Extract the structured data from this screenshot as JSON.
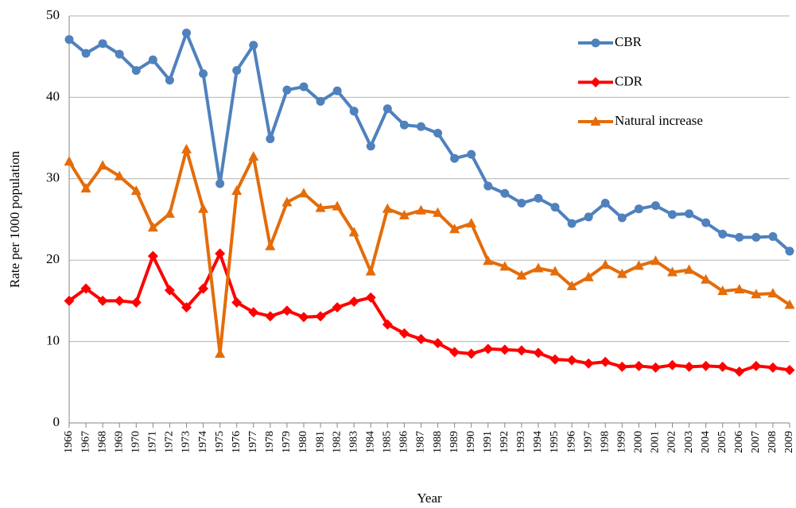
{
  "chart_data": {
    "type": "line",
    "x_label": "Year",
    "y_label": "Rate per 1000 population",
    "categories": [
      "1966",
      "1967",
      "1968",
      "1969",
      "1970",
      "1971",
      "1972",
      "1973",
      "1974",
      "1975",
      "1976",
      "1977",
      "1978",
      "1979",
      "1980",
      "1981",
      "1982",
      "1983",
      "1984",
      "1985",
      "1986",
      "1987",
      "1988",
      "1989",
      "1990",
      "1991",
      "1992",
      "1993",
      "1994",
      "1995",
      "1996",
      "1997",
      "1998",
      "1999",
      "2000",
      "2001",
      "2002",
      "2003",
      "2004",
      "2005",
      "2006",
      "2007",
      "2008",
      "2009"
    ],
    "series": [
      {
        "name": "CBR",
        "color": "#4f81bd",
        "marker": "circle",
        "values": [
          47.1,
          45.4,
          46.6,
          45.3,
          43.3,
          44.6,
          42.1,
          47.9,
          42.9,
          29.4,
          43.3,
          46.4,
          34.9,
          40.9,
          41.3,
          39.5,
          40.8,
          38.3,
          34.0,
          38.6,
          36.6,
          36.4,
          35.6,
          32.5,
          33.0,
          29.1,
          28.2,
          27.0,
          27.6,
          26.5,
          24.5,
          25.3,
          27.0,
          25.2,
          26.3,
          26.7,
          25.6,
          25.7,
          24.6,
          23.2,
          22.8,
          22.8,
          22.9,
          21.1
        ]
      },
      {
        "name": "CDR",
        "color": "#ff0000",
        "marker": "diamond",
        "values": [
          15.0,
          16.5,
          15.0,
          15.0,
          14.8,
          20.5,
          16.3,
          14.2,
          16.5,
          20.8,
          14.8,
          13.6,
          13.1,
          13.8,
          13.0,
          13.1,
          14.2,
          14.9,
          15.4,
          12.1,
          11.0,
          10.3,
          9.8,
          8.7,
          8.5,
          9.1,
          9.0,
          8.9,
          8.6,
          7.8,
          7.7,
          7.3,
          7.5,
          6.9,
          7.0,
          6.8,
          7.1,
          6.9,
          7.0,
          6.9,
          6.3,
          7.0,
          6.8,
          6.5
        ]
      },
      {
        "name": "Natural increase",
        "color": "#e46c0a",
        "marker": "triangle",
        "values": [
          32.1,
          28.8,
          31.6,
          30.3,
          28.5,
          24.0,
          25.7,
          33.6,
          26.3,
          8.5,
          28.5,
          32.7,
          21.7,
          27.1,
          28.2,
          26.4,
          26.6,
          23.4,
          18.6,
          26.3,
          25.5,
          26.1,
          25.8,
          23.8,
          24.5,
          19.9,
          19.2,
          18.1,
          19.0,
          18.6,
          16.8,
          17.9,
          19.4,
          18.3,
          19.3,
          19.9,
          18.5,
          18.8,
          17.6,
          16.2,
          16.4,
          15.8,
          15.9,
          14.5
        ]
      }
    ],
    "ylim": [
      0,
      50
    ],
    "yticks": [
      0,
      10,
      20,
      30,
      40,
      50
    ],
    "grid": true,
    "legend": "upper right"
  }
}
